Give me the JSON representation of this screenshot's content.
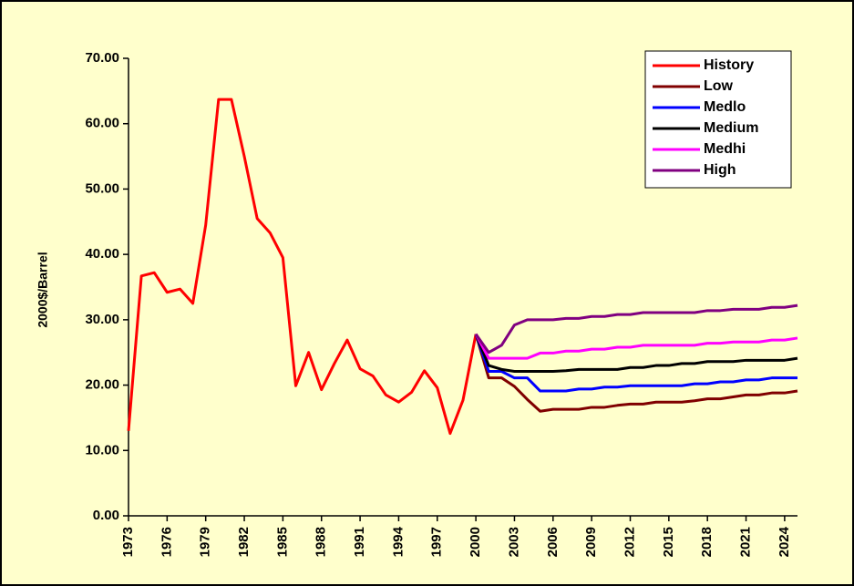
{
  "chart_data": {
    "type": "line",
    "y_label": "2000$/Barrel",
    "x": [
      1973,
      1974,
      1975,
      1976,
      1977,
      1978,
      1979,
      1980,
      1981,
      1982,
      1983,
      1984,
      1985,
      1986,
      1987,
      1988,
      1989,
      1990,
      1991,
      1992,
      1993,
      1994,
      1995,
      1996,
      1997,
      1998,
      1999,
      2000,
      2001,
      2002,
      2003,
      2004,
      2005,
      2006,
      2007,
      2008,
      2009,
      2010,
      2011,
      2012,
      2013,
      2014,
      2015,
      2016,
      2017,
      2018,
      2019,
      2020,
      2021,
      2022,
      2023,
      2024,
      2025
    ],
    "xlim": [
      1973,
      2025
    ],
    "xticks": [
      1973,
      1976,
      1979,
      1982,
      1985,
      1988,
      1991,
      1994,
      1997,
      2000,
      2003,
      2006,
      2009,
      2012,
      2015,
      2018,
      2021,
      2024
    ],
    "ylim": [
      0,
      70
    ],
    "yticks": [
      {
        "value": 0,
        "label": "0.00"
      },
      {
        "value": 10,
        "label": "10.00"
      },
      {
        "value": 20,
        "label": "20.00"
      },
      {
        "value": 30,
        "label": "30.00"
      },
      {
        "value": 40,
        "label": "40.00"
      },
      {
        "value": 50,
        "label": "50.00"
      },
      {
        "value": 60,
        "label": "60.00"
      },
      {
        "value": 70,
        "label": "70.00"
      }
    ],
    "grid": false,
    "legend_position": "top-right",
    "series": [
      {
        "name": "History",
        "color": "#ff0000",
        "values": [
          13.0,
          36.7,
          37.2,
          34.2,
          34.7,
          32.5,
          44.5,
          63.7,
          63.7,
          55.0,
          45.5,
          43.3,
          39.5,
          19.9,
          25.0,
          19.3,
          23.3,
          26.9,
          22.5,
          21.4,
          18.5,
          17.4,
          18.9,
          22.2,
          19.6,
          12.6,
          17.7,
          27.8,
          null,
          null,
          null,
          null,
          null,
          null,
          null,
          null,
          null,
          null,
          null,
          null,
          null,
          null,
          null,
          null,
          null,
          null,
          null,
          null,
          null,
          null,
          null,
          null,
          null
        ]
      },
      {
        "name": "Low",
        "color": "#800000",
        "values": [
          null,
          null,
          null,
          null,
          null,
          null,
          null,
          null,
          null,
          null,
          null,
          null,
          null,
          null,
          null,
          null,
          null,
          null,
          null,
          null,
          null,
          null,
          null,
          null,
          null,
          null,
          null,
          27.8,
          21.1,
          21.1,
          19.8,
          17.8,
          16.0,
          16.3,
          16.3,
          16.3,
          16.6,
          16.6,
          16.9,
          17.1,
          17.1,
          17.4,
          17.4,
          17.4,
          17.6,
          17.9,
          17.9,
          18.2,
          18.5,
          18.5,
          18.8,
          18.8,
          19.1
        ]
      },
      {
        "name": "Medlo",
        "color": "#0000ff",
        "values": [
          null,
          null,
          null,
          null,
          null,
          null,
          null,
          null,
          null,
          null,
          null,
          null,
          null,
          null,
          null,
          null,
          null,
          null,
          null,
          null,
          null,
          null,
          null,
          null,
          null,
          null,
          null,
          27.8,
          22.1,
          22.1,
          21.1,
          21.1,
          19.1,
          19.1,
          19.1,
          19.4,
          19.4,
          19.7,
          19.7,
          19.9,
          19.9,
          19.9,
          19.9,
          19.9,
          20.2,
          20.2,
          20.5,
          20.5,
          20.8,
          20.8,
          21.1,
          21.1,
          21.1
        ]
      },
      {
        "name": "Medium",
        "color": "#000000",
        "values": [
          null,
          null,
          null,
          null,
          null,
          null,
          null,
          null,
          null,
          null,
          null,
          null,
          null,
          null,
          null,
          null,
          null,
          null,
          null,
          null,
          null,
          null,
          null,
          null,
          null,
          null,
          null,
          27.8,
          23.0,
          22.4,
          22.1,
          22.1,
          22.1,
          22.1,
          22.2,
          22.4,
          22.4,
          22.4,
          22.4,
          22.7,
          22.7,
          23.0,
          23.0,
          23.3,
          23.3,
          23.6,
          23.6,
          23.6,
          23.8,
          23.8,
          23.8,
          23.8,
          24.1
        ]
      },
      {
        "name": "Medhi",
        "color": "#ff00ff",
        "values": [
          null,
          null,
          null,
          null,
          null,
          null,
          null,
          null,
          null,
          null,
          null,
          null,
          null,
          null,
          null,
          null,
          null,
          null,
          null,
          null,
          null,
          null,
          null,
          null,
          null,
          null,
          null,
          27.8,
          24.1,
          24.1,
          24.1,
          24.1,
          24.9,
          24.9,
          25.2,
          25.2,
          25.5,
          25.5,
          25.8,
          25.8,
          26.1,
          26.1,
          26.1,
          26.1,
          26.1,
          26.4,
          26.4,
          26.6,
          26.6,
          26.6,
          26.9,
          26.9,
          27.2
        ]
      },
      {
        "name": "High",
        "color": "#800080",
        "values": [
          null,
          null,
          null,
          null,
          null,
          null,
          null,
          null,
          null,
          null,
          null,
          null,
          null,
          null,
          null,
          null,
          null,
          null,
          null,
          null,
          null,
          null,
          null,
          null,
          null,
          null,
          null,
          27.8,
          25.0,
          26.1,
          29.2,
          30.0,
          30.0,
          30.0,
          30.2,
          30.2,
          30.5,
          30.5,
          30.8,
          30.8,
          31.1,
          31.1,
          31.1,
          31.1,
          31.1,
          31.4,
          31.4,
          31.6,
          31.6,
          31.6,
          31.9,
          31.9,
          32.2
        ]
      }
    ]
  }
}
